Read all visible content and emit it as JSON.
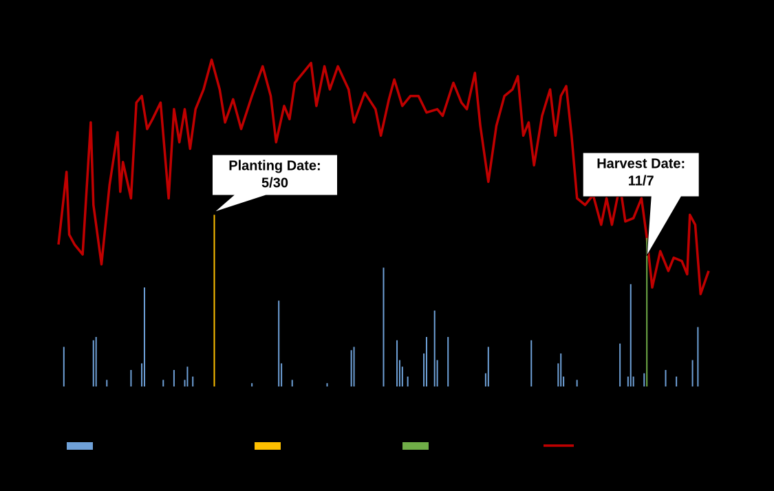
{
  "chart_data": {
    "type": "combo",
    "xlim": [
      92,
      334
    ],
    "ylim": [
      0,
      100
    ],
    "series": [
      {
        "type": "bar",
        "color": "#6fa1d8",
        "x": [
          94,
          105,
          106,
          110,
          119,
          123,
          124,
          131,
          135,
          139,
          140,
          142,
          164,
          174,
          175,
          179,
          192,
          201,
          202,
          213,
          218,
          219,
          220,
          222,
          228,
          229,
          232,
          233,
          237,
          251,
          252,
          268,
          278,
          279,
          280,
          285,
          301,
          304,
          305,
          306,
          310,
          318,
          322,
          328,
          330
        ],
        "values": [
          12,
          14,
          15,
          2,
          5,
          7,
          30,
          2,
          5,
          2,
          6,
          3,
          1,
          26,
          7,
          2,
          1,
          11,
          12,
          36,
          14,
          8,
          6,
          3,
          10,
          15,
          23,
          8,
          15,
          4,
          12,
          14,
          7,
          10,
          3,
          2,
          13,
          3,
          31,
          3,
          4,
          5,
          3,
          8,
          18
        ]
      },
      {
        "type": "line",
        "color": "#c00000",
        "x": [
          92,
          95,
          96,
          98,
          101,
          104,
          105,
          108,
          111,
          114,
          115,
          116,
          119,
          121,
          123,
          125,
          127,
          130,
          133,
          135,
          137,
          139,
          141,
          143,
          146,
          149,
          152,
          154,
          157,
          160,
          164,
          168,
          171,
          173,
          176,
          178,
          180,
          183,
          186,
          188,
          191,
          193,
          196,
          200,
          202,
          206,
          210,
          212,
          215,
          217,
          220,
          223,
          226,
          229,
          233,
          235,
          239,
          242,
          244,
          247,
          249,
          252,
          255,
          258,
          261,
          263,
          265,
          267,
          269,
          272,
          275,
          277,
          279,
          281,
          283,
          285,
          288,
          291,
          294,
          296,
          298,
          301,
          303,
          306,
          309,
          311,
          313,
          316,
          319,
          321,
          324,
          326,
          327,
          329,
          331,
          334
        ],
        "values": [
          43,
          65,
          46,
          43,
          40,
          80,
          55,
          37,
          61,
          77,
          59,
          68,
          57,
          86,
          88,
          78,
          81,
          86,
          57,
          84,
          74,
          84,
          72,
          84,
          90,
          99,
          90,
          80,
          87,
          78,
          88,
          97,
          88,
          74,
          85,
          81,
          92,
          95,
          98,
          85,
          97,
          90,
          97,
          90,
          80,
          89,
          84,
          76,
          87,
          93,
          85,
          88,
          88,
          83,
          84,
          82,
          92,
          86,
          84,
          95,
          79,
          62,
          79,
          88,
          90,
          94,
          76,
          80,
          67,
          82,
          90,
          76,
          88,
          91,
          76,
          57,
          55,
          58,
          49,
          57,
          49,
          61,
          50,
          51,
          57,
          45,
          30,
          41,
          35,
          39,
          38,
          34,
          52,
          49,
          28,
          35
        ]
      }
    ],
    "annotations": [
      {
        "lines": [
          "Planting Date:",
          "5/30"
        ],
        "x": 150,
        "top": 52,
        "color": "#ffc000"
      },
      {
        "lines": [
          "Harvest Date:",
          "11/7"
        ],
        "x": 311,
        "top": 45,
        "color": "#70ad47"
      }
    ]
  }
}
